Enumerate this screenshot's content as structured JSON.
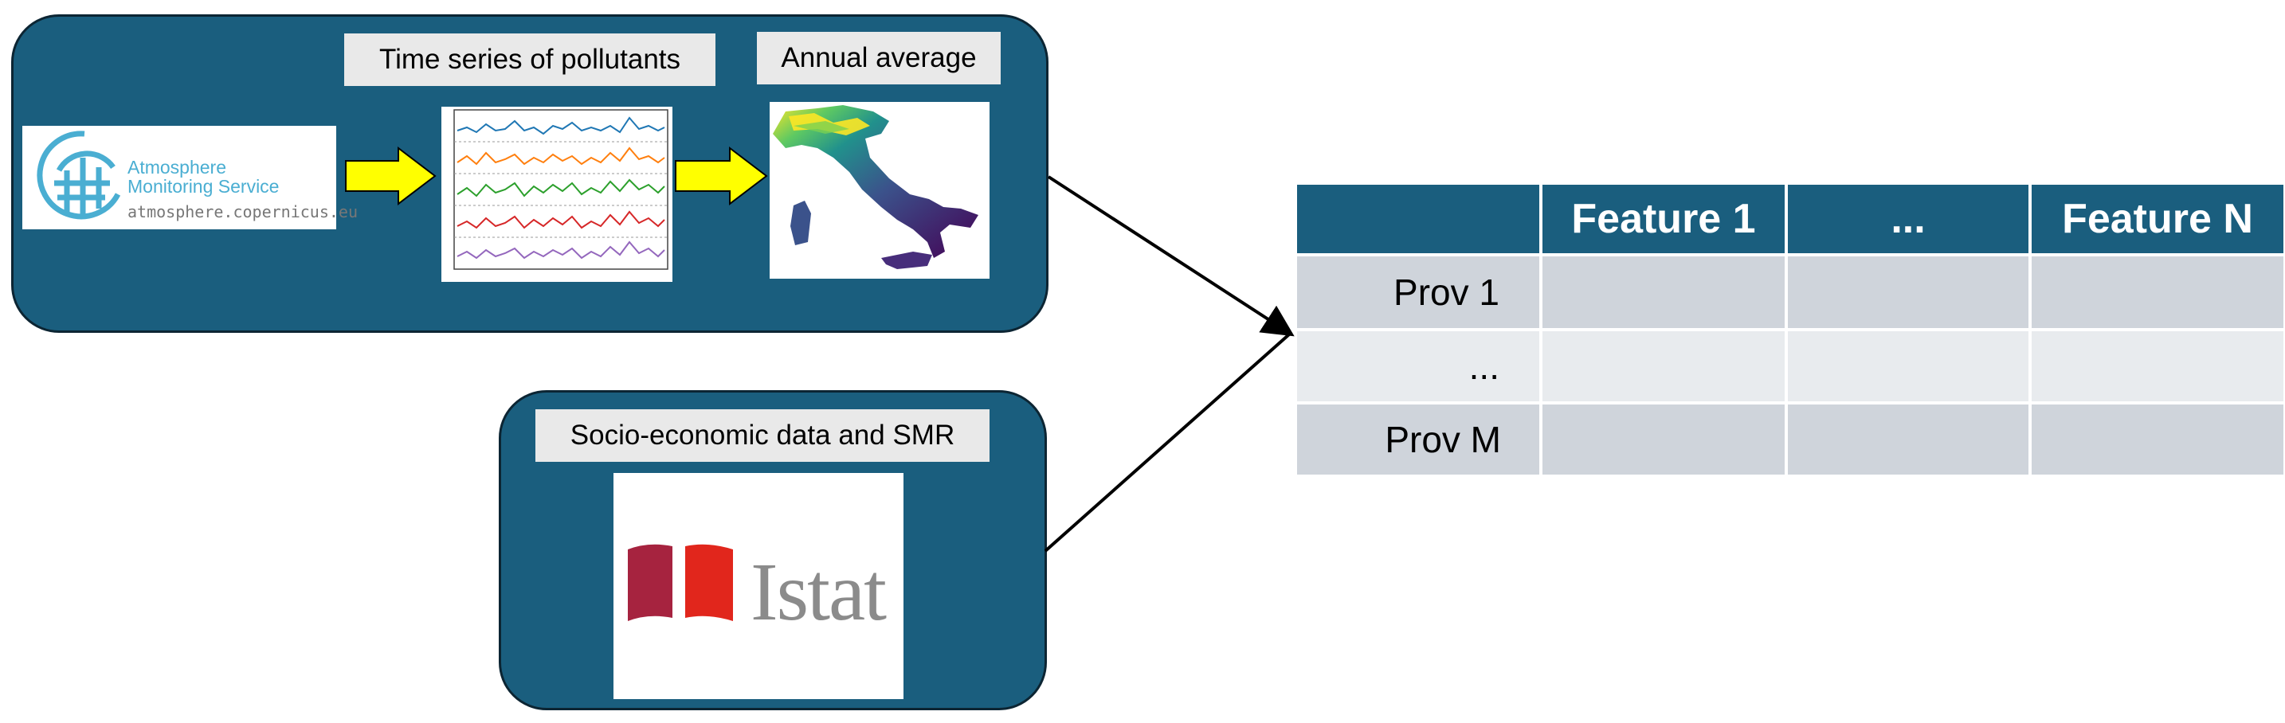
{
  "colors": {
    "panel": "#1a5e7e",
    "header": "#1a5e7e",
    "arrow_fill": "#ffff00",
    "row_dark": "#cfd4db",
    "row_light": "#e8ebee"
  },
  "sources": {
    "time_series_caption": "Time series of pollutants",
    "annual_average_caption": "Annual average",
    "socio_caption": "Socio-economic data and SMR",
    "cams_logo": {
      "line1": "Atmosphere",
      "line2": "Monitoring Service",
      "url": "atmosphere.copernicus.eu"
    },
    "istat_logo": {
      "name": "Istat"
    }
  },
  "table": {
    "columns": [
      "",
      "Feature 1",
      "...",
      "Feature N"
    ],
    "rows": [
      {
        "label": "Prov 1"
      },
      {
        "label": "..."
      },
      {
        "label": "Prov M"
      }
    ]
  }
}
